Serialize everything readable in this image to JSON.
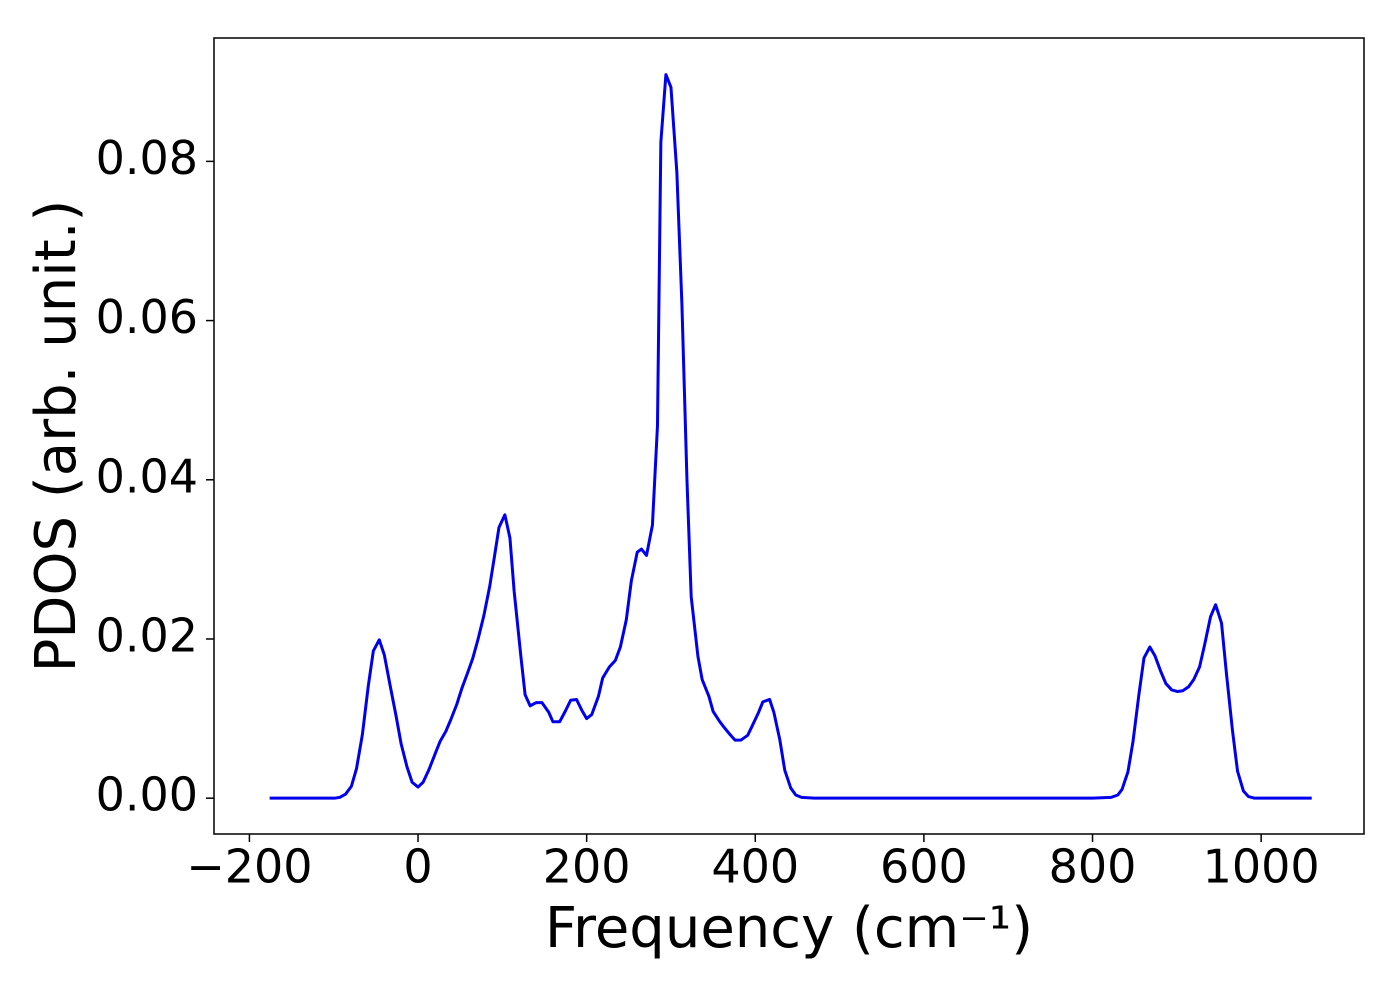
{
  "chart_data": {
    "type": "line",
    "xlabel": "Frequency (cm⁻¹)",
    "ylabel": "PDOS (arb. unit.)",
    "xlim": [
      -242,
      1122
    ],
    "ylim": [
      -0.0045,
      0.0955
    ],
    "xticks": [
      {
        "value": -200,
        "label": "−200"
      },
      0,
      200,
      400,
      600,
      800,
      1000
    ],
    "yticks": [
      {
        "value": 0,
        "label": "0.00"
      },
      0.02,
      0.04,
      0.06,
      0.08
    ],
    "grid": false,
    "series": [
      {
        "color": "#0000ee",
        "x": [
          -176,
          -150,
          -120,
          -99,
          -93,
          -86,
          -79,
          -73,
          -66,
          -59,
          -53,
          -46,
          -40,
          -33,
          -26,
          -20,
          -13,
          -7,
          0,
          6,
          13,
          20,
          26,
          33,
          39,
          46,
          52,
          59,
          65,
          71,
          78,
          85,
          91,
          96,
          103,
          109,
          114,
          122,
          127,
          133,
          140,
          147,
          155,
          160,
          168,
          175,
          181,
          188,
          194,
          200,
          206,
          214,
          219,
          227,
          234,
          240,
          247,
          253,
          260,
          265,
          271,
          278,
          284,
          288,
          294,
          300,
          307,
          313,
          319,
          324,
          332,
          337,
          345,
          350,
          358,
          363,
          370,
          376,
          383,
          391,
          396,
          404,
          409,
          417,
          422,
          429,
          435,
          442,
          448,
          455,
          470,
          500,
          600,
          700,
          800,
          822,
          830,
          835,
          842,
          848,
          855,
          861,
          868,
          874,
          881,
          887,
          894,
          901,
          907,
          914,
          920,
          927,
          933,
          940,
          946,
          953,
          959,
          966,
          972,
          979,
          985,
          992,
          1000,
          1030,
          1060
        ],
        "values": [
          0,
          0,
          0,
          0,
          0.0001,
          0.0005,
          0.0015,
          0.0037,
          0.008,
          0.0141,
          0.0185,
          0.0199,
          0.018,
          0.0141,
          0.0103,
          0.0068,
          0.0039,
          0.002,
          0.0014,
          0.002,
          0.0036,
          0.0055,
          0.0071,
          0.0084,
          0.0099,
          0.0118,
          0.0138,
          0.0158,
          0.0176,
          0.0199,
          0.0229,
          0.0266,
          0.0306,
          0.034,
          0.0356,
          0.0327,
          0.026,
          0.0178,
          0.013,
          0.0116,
          0.012,
          0.012,
          0.0108,
          0.0096,
          0.0096,
          0.011,
          0.0123,
          0.0124,
          0.0111,
          0.01,
          0.0105,
          0.0128,
          0.0151,
          0.0165,
          0.0173,
          0.019,
          0.0224,
          0.0273,
          0.0309,
          0.0313,
          0.0305,
          0.0343,
          0.0468,
          0.0824,
          0.0909,
          0.0893,
          0.0786,
          0.062,
          0.0399,
          0.0253,
          0.0178,
          0.0149,
          0.0128,
          0.0109,
          0.0096,
          0.0089,
          0.008,
          0.0073,
          0.0073,
          0.0079,
          0.009,
          0.0108,
          0.0121,
          0.0124,
          0.0108,
          0.0074,
          0.0035,
          0.0013,
          0.0004,
          0.0001,
          0,
          0,
          0,
          0,
          0,
          0.0001,
          0.0004,
          0.0011,
          0.0033,
          0.0071,
          0.013,
          0.0176,
          0.019,
          0.0179,
          0.0159,
          0.0144,
          0.0136,
          0.0134,
          0.0135,
          0.014,
          0.0149,
          0.0165,
          0.0193,
          0.0228,
          0.0243,
          0.022,
          0.0155,
          0.0085,
          0.0034,
          0.0009,
          0.0002,
          0,
          0,
          0,
          0
        ]
      }
    ]
  }
}
